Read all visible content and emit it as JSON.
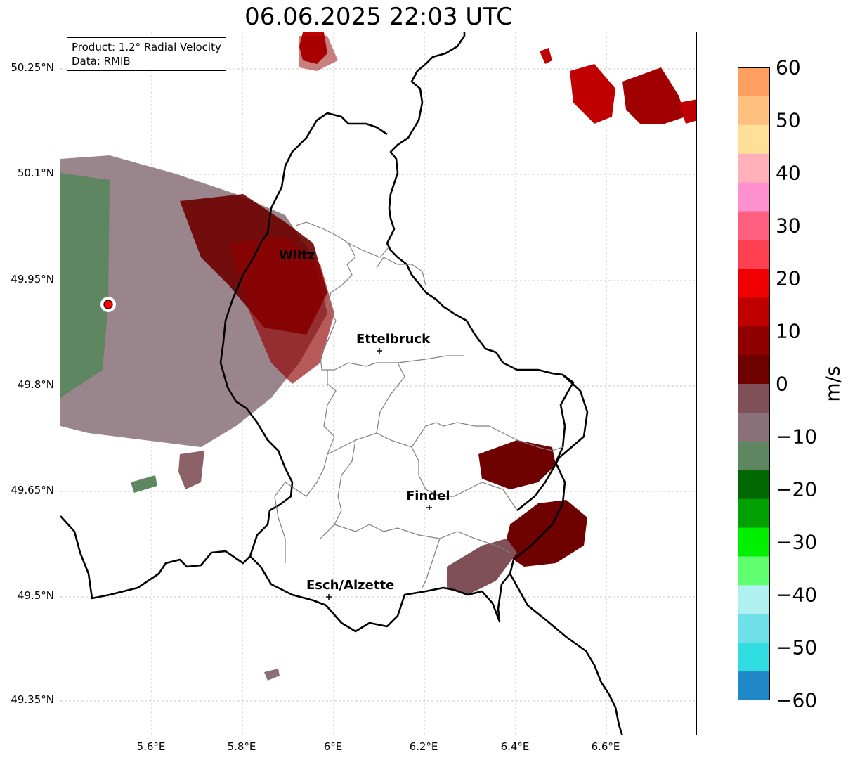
{
  "title": "06.06.2025 22:03 UTC",
  "info": {
    "product": "Product: 1.2° Radial Velocity",
    "data": "Data: RMIB"
  },
  "lat_labels": [
    "50.25°N",
    "50.1°N",
    "49.95°N",
    "49.8°N",
    "49.65°N",
    "49.5°N",
    "49.35°N"
  ],
  "lon_labels": [
    "5.6°E",
    "5.8°E",
    "6°E",
    "6.2°E",
    "6.4°E",
    "6.6°E"
  ],
  "cities": [
    {
      "name": "Wiltz"
    },
    {
      "name": "Ettelbruck"
    },
    {
      "name": "Findel"
    },
    {
      "name": "Esch/Alzette"
    }
  ],
  "colorbar": {
    "unit": "m/s",
    "ticks": [
      "60",
      "50",
      "40",
      "30",
      "20",
      "10",
      "0",
      "−10",
      "−20",
      "−30",
      "−40",
      "−50",
      "−60"
    ],
    "colors": [
      "#ffa060",
      "#ffc080",
      "#ffe098",
      "#ffb0b8",
      "#ff90d0",
      "#ff6080",
      "#ff4050",
      "#f00000",
      "#c00000",
      "#900000",
      "#6e0000",
      "#805058",
      "#8a7078",
      "#5e8660",
      "#006800",
      "#00a000",
      "#00f000",
      "#60ff70",
      "#b0f0f0",
      "#70e0e8",
      "#30dde0",
      "#2088c8"
    ]
  }
}
